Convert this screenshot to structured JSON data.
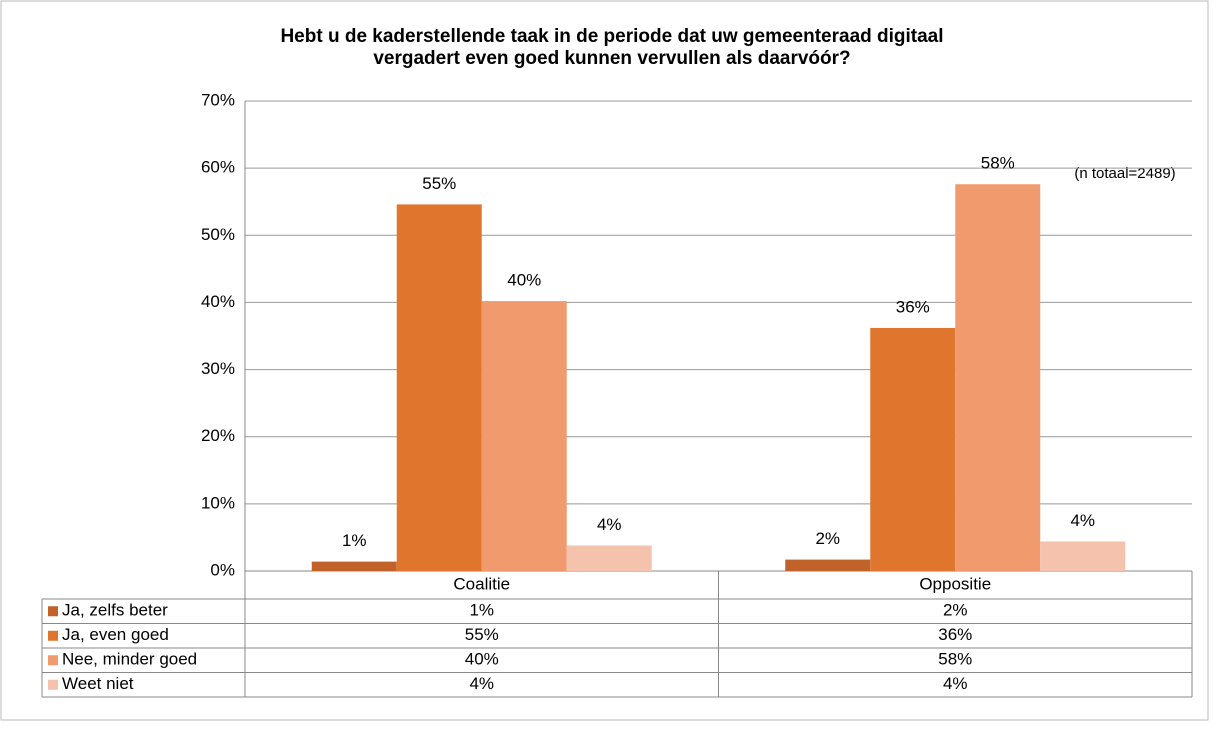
{
  "chart_data": {
    "type": "bar",
    "title": [
      "Hebt u de kaderstellende taak in de periode dat uw gemeenteraad digitaal",
      "vergadert even goed kunnen vervullen als daarvóór?"
    ],
    "annotation": "(n totaal=2489)",
    "categories": [
      "Coalitie",
      "Oppositie"
    ],
    "series": [
      {
        "name": "Ja, zelfs beter",
        "color": "#c0622a",
        "values": [
          1.4,
          1.7
        ],
        "value_labels": [
          "1%",
          "2%"
        ]
      },
      {
        "name": "Ja, even goed",
        "color": "#e0752d",
        "values": [
          54.6,
          36.2
        ],
        "value_labels": [
          "55%",
          "36%"
        ]
      },
      {
        "name": "Nee, minder goed",
        "color": "#f09a6e",
        "values": [
          40.2,
          57.6
        ],
        "value_labels": [
          "40%",
          "58%"
        ]
      },
      {
        "name": "Weet niet",
        "color": "#f5c2ad",
        "values": [
          3.8,
          4.4
        ],
        "value_labels": [
          "4%",
          "4%"
        ]
      }
    ],
    "ylim": [
      0,
      70
    ],
    "yticks": [
      {
        "value": 0,
        "label": "0%"
      },
      {
        "value": 10,
        "label": "10%"
      },
      {
        "value": 20,
        "label": "20%"
      },
      {
        "value": 30,
        "label": "30%"
      },
      {
        "value": 40,
        "label": "40%"
      },
      {
        "value": 50,
        "label": "50%"
      },
      {
        "value": 60,
        "label": "60%"
      },
      {
        "value": 70,
        "label": "70%"
      }
    ],
    "grid": true
  }
}
